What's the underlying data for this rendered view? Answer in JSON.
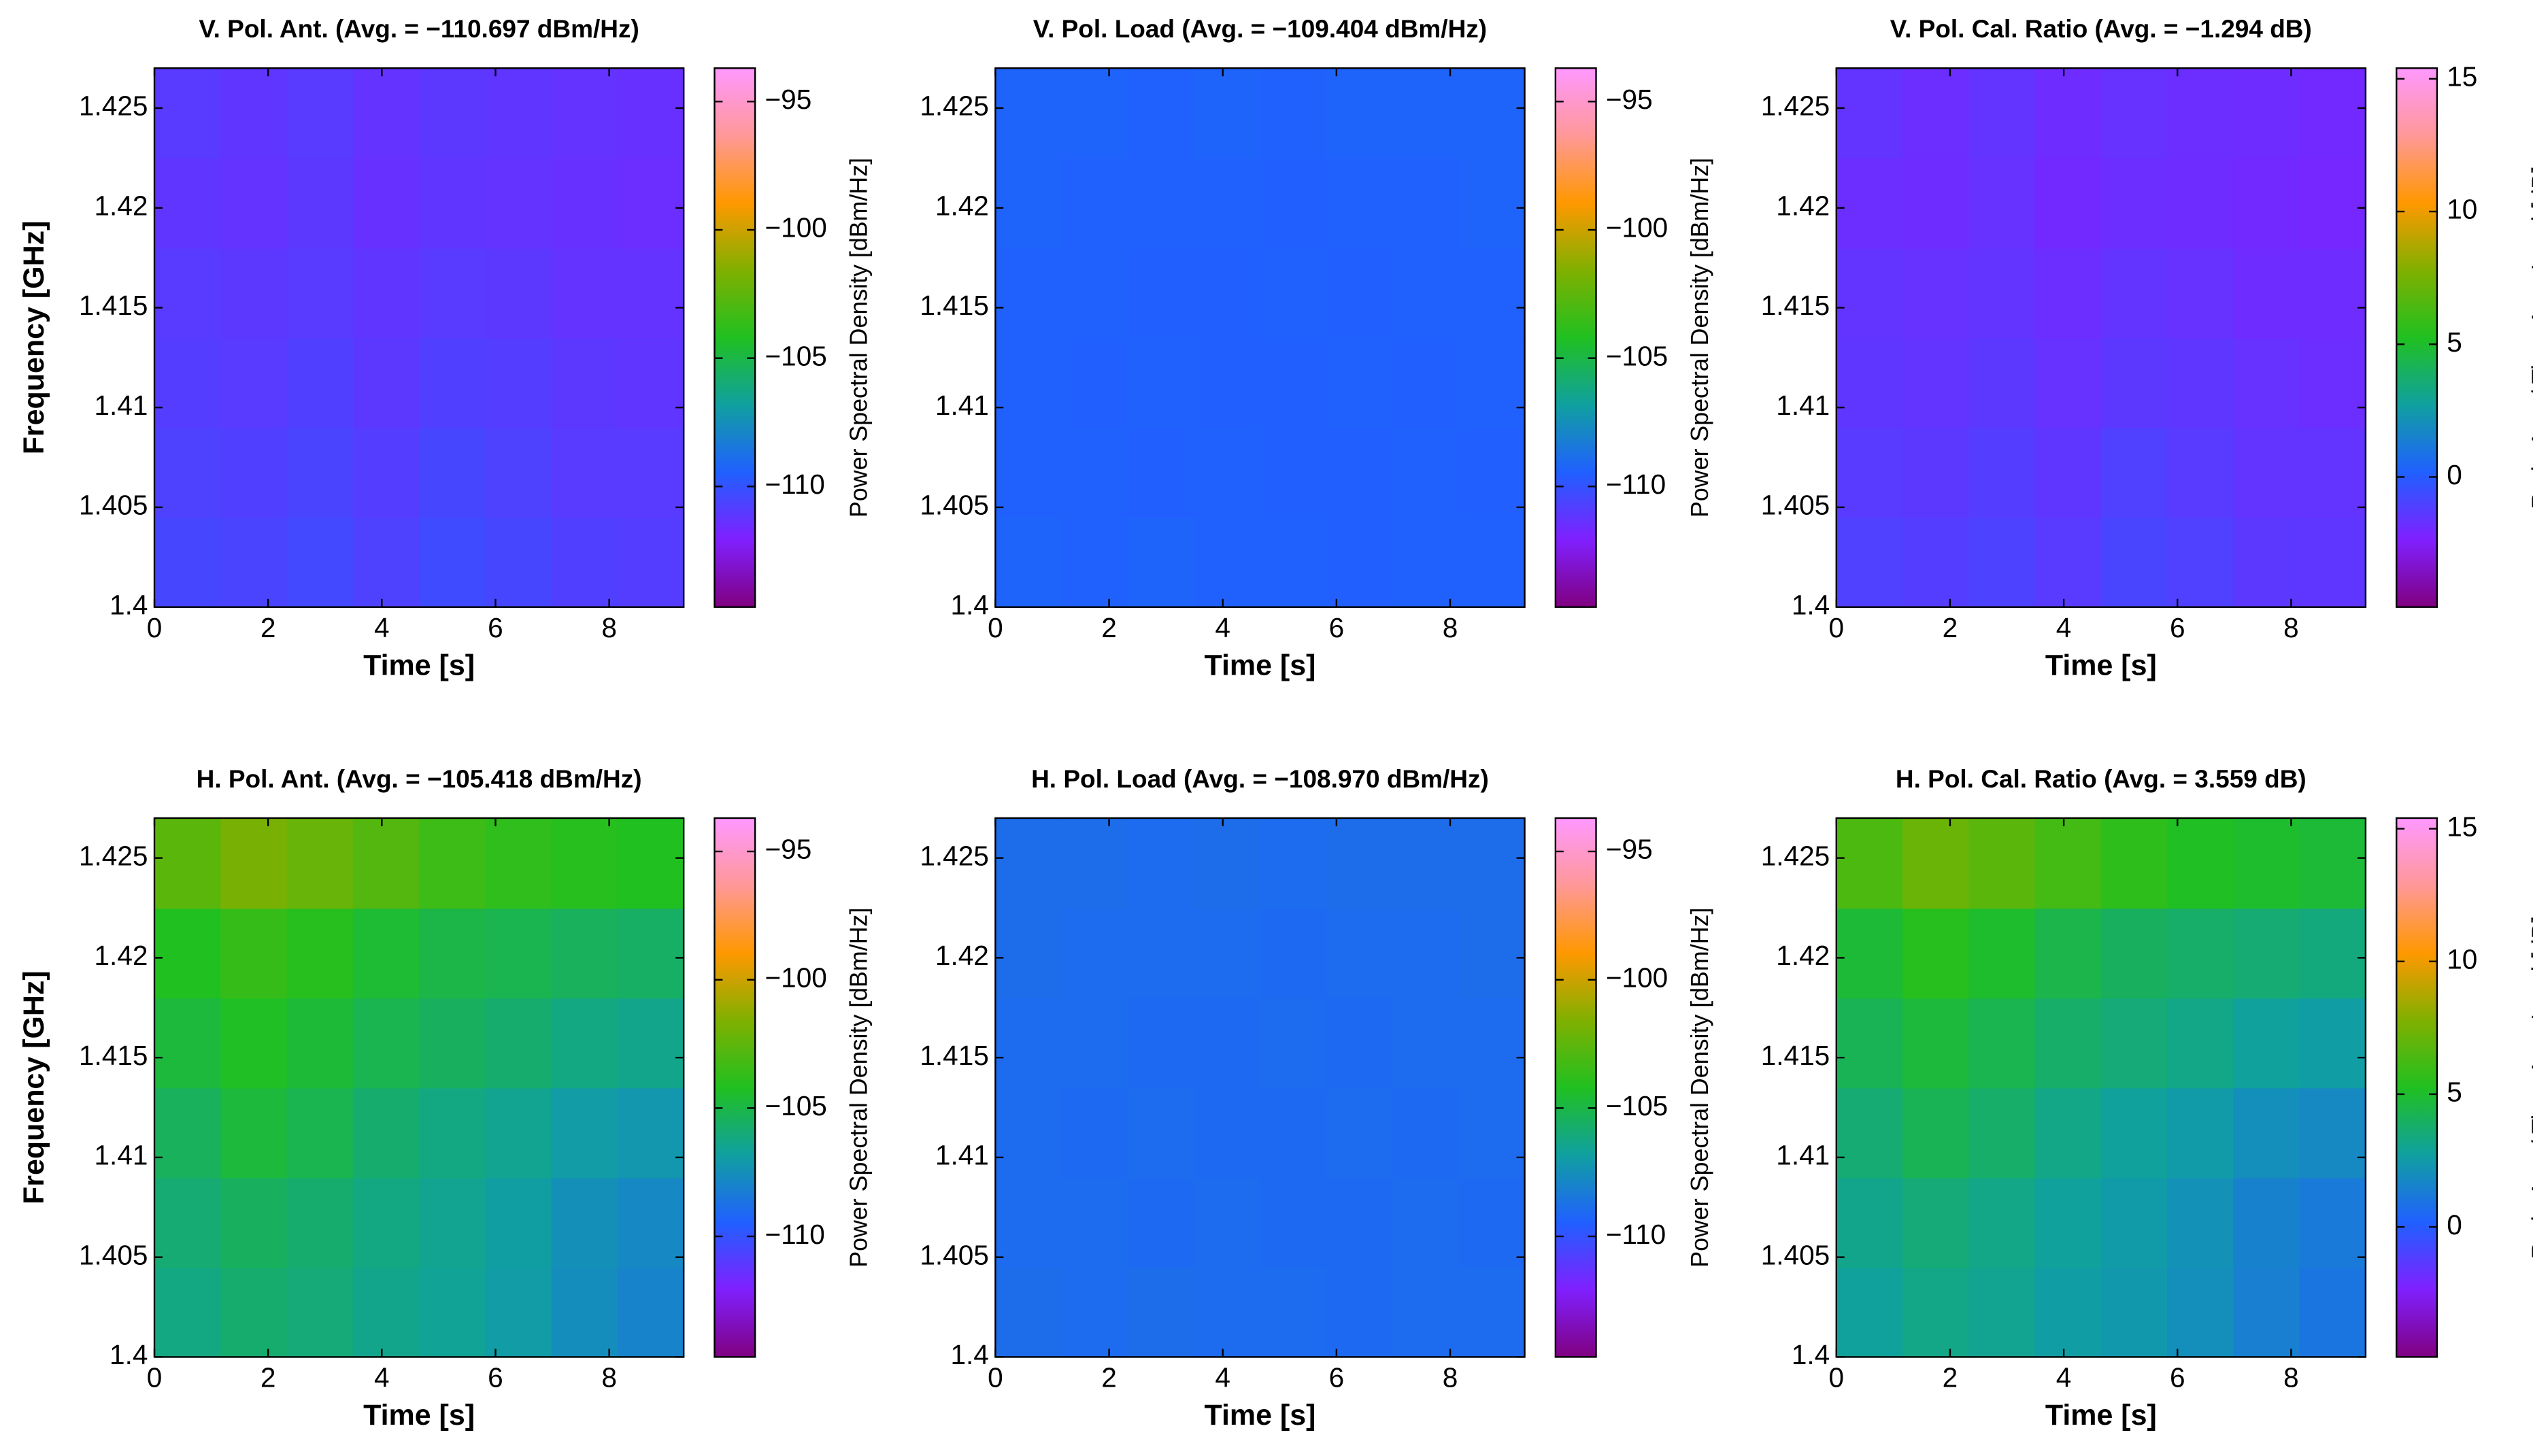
{
  "chart_data": [
    {
      "type": "heatmap",
      "title": "V. Pol. Ant. (Avg. = −110.697 dBm/Hz)",
      "xlabel": "Time [s]",
      "ylabel": "Frequency [GHz]",
      "colorbar_label": "Power Spectral Density [dBm/Hz]",
      "xlim": [
        0,
        9.31
      ],
      "xticks": [
        0,
        2,
        4,
        6,
        8
      ],
      "ylim": [
        1.4,
        1.427
      ],
      "yticks": [
        1.4,
        1.405,
        1.41,
        1.415,
        1.42,
        1.425
      ],
      "clim": [
        -114.7,
        -93.7
      ],
      "cticks": [
        {
          "value": -110,
          "label": "−110"
        },
        {
          "value": -105,
          "label": "−105"
        },
        {
          "value": -100,
          "label": "−100"
        },
        {
          "value": -95,
          "label": "−95"
        }
      ],
      "colormap": [
        "#800080",
        "#8020ff",
        "#2060ff",
        "#10a0a0",
        "#20c020",
        "#80b000",
        "#ff9800",
        "#ff9898",
        "#ff98ff"
      ],
      "z": [
        [
          -110.5,
          -110.6,
          -110.4,
          -110.7,
          -110.3,
          -110.5,
          -110.8,
          -110.9
        ],
        [
          -110.7,
          -110.8,
          -110.6,
          -110.9,
          -110.5,
          -110.7,
          -111.0,
          -111.0
        ],
        [
          -110.9,
          -111.0,
          -110.8,
          -111.1,
          -110.8,
          -110.9,
          -111.1,
          -111.2
        ],
        [
          -111.0,
          -111.1,
          -111.0,
          -111.2,
          -111.0,
          -111.1,
          -111.3,
          -111.3
        ],
        [
          -111.2,
          -111.3,
          -111.1,
          -111.4,
          -111.2,
          -111.3,
          -111.4,
          -111.5
        ],
        [
          -111.0,
          -111.2,
          -111.0,
          -111.3,
          -111.1,
          -111.2,
          -111.3,
          -111.4
        ]
      ]
    },
    {
      "type": "heatmap",
      "title": "V. Pol. Load (Avg. = −109.404 dBm/Hz)",
      "xlabel": "Time [s]",
      "colorbar_label": "Power Spectral Density [dBm/Hz]",
      "xlim": [
        0,
        9.31
      ],
      "xticks": [
        0,
        2,
        4,
        6,
        8
      ],
      "ylim": [
        1.4,
        1.427
      ],
      "yticks": [
        1.4,
        1.405,
        1.41,
        1.415,
        1.42,
        1.425
      ],
      "clim": [
        -114.7,
        -93.7
      ],
      "cticks": [
        {
          "value": -110,
          "label": "−110"
        },
        {
          "value": -105,
          "label": "−105"
        },
        {
          "value": -100,
          "label": "−100"
        },
        {
          "value": -95,
          "label": "−95"
        }
      ],
      "colormap": [
        "#800080",
        "#8020ff",
        "#2060ff",
        "#10a0a0",
        "#20c020",
        "#80b000",
        "#ff9800",
        "#ff9898",
        "#ff98ff"
      ],
      "z": [
        [
          -109.3,
          -109.4,
          -109.3,
          -109.4,
          -109.4,
          -109.5,
          -109.4,
          -109.4
        ],
        [
          -109.4,
          -109.4,
          -109.5,
          -109.4,
          -109.5,
          -109.5,
          -109.4,
          -109.5
        ],
        [
          -109.4,
          -109.5,
          -109.4,
          -109.5,
          -109.5,
          -109.4,
          -109.5,
          -109.4
        ],
        [
          -109.4,
          -109.4,
          -109.5,
          -109.5,
          -109.4,
          -109.5,
          -109.4,
          -109.4
        ],
        [
          -109.3,
          -109.4,
          -109.4,
          -109.4,
          -109.5,
          -109.4,
          -109.4,
          -109.3
        ],
        [
          -109.3,
          -109.3,
          -109.4,
          -109.3,
          -109.4,
          -109.3,
          -109.3,
          -109.3
        ]
      ]
    },
    {
      "type": "heatmap",
      "title": "V. Pol. Cal. Ratio (Avg. = −1.294 dB)",
      "xlabel": "Time [s]",
      "colorbar_label": "Ratio Ant. / Time Avg. Load [dB]",
      "xlim": [
        0,
        9.31
      ],
      "xticks": [
        0,
        2,
        4,
        6,
        8
      ],
      "ylim": [
        1.4,
        1.427
      ],
      "yticks": [
        1.4,
        1.405,
        1.41,
        1.415,
        1.42,
        1.425
      ],
      "clim": [
        -4.9,
        15.4
      ],
      "cticks": [
        0,
        5,
        10,
        15
      ],
      "colormap": [
        "#800080",
        "#8020ff",
        "#2060ff",
        "#10a0a0",
        "#20c020",
        "#80b000",
        "#ff9800",
        "#ff9898",
        "#ff98ff"
      ],
      "z": [
        [
          -1.1,
          -1.2,
          -1.0,
          -1.3,
          -0.9,
          -1.1,
          -1.4,
          -1.5
        ],
        [
          -1.3,
          -1.4,
          -1.2,
          -1.5,
          -1.1,
          -1.3,
          -1.6,
          -1.6
        ],
        [
          -1.5,
          -1.6,
          -1.4,
          -1.7,
          -1.4,
          -1.5,
          -1.7,
          -1.8
        ],
        [
          -1.6,
          -1.7,
          -1.6,
          -1.8,
          -1.6,
          -1.7,
          -1.9,
          -1.9
        ],
        [
          -1.8,
          -1.9,
          -1.7,
          -2.0,
          -1.8,
          -1.9,
          -2.0,
          -2.1
        ],
        [
          -1.6,
          -1.8,
          -1.6,
          -1.9,
          -1.7,
          -1.8,
          -1.9,
          -2.0
        ]
      ]
    },
    {
      "type": "heatmap",
      "title": "H. Pol. Ant. (Avg. = −105.418 dBm/Hz)",
      "xlabel": "Time [s]",
      "ylabel": "Frequency [GHz]",
      "colorbar_label": "Power Spectral Density [dBm/Hz]",
      "xlim": [
        0,
        9.31
      ],
      "xticks": [
        0,
        2,
        4,
        6,
        8
      ],
      "ylim": [
        1.4,
        1.427
      ],
      "yticks": [
        1.4,
        1.405,
        1.41,
        1.415,
        1.42,
        1.425
      ],
      "clim": [
        -114.7,
        -93.7
      ],
      "cticks": [
        {
          "value": -110,
          "label": "−110"
        },
        {
          "value": -105,
          "label": "−105"
        },
        {
          "value": -100,
          "label": "−100"
        },
        {
          "value": -95,
          "label": "−95"
        }
      ],
      "colormap": [
        "#800080",
        "#8020ff",
        "#2060ff",
        "#10a0a0",
        "#20c020",
        "#80b000",
        "#ff9800",
        "#ff9898",
        "#ff98ff"
      ],
      "z": [
        [
          -106.2,
          -105.8,
          -106.0,
          -106.4,
          -106.6,
          -107.0,
          -107.6,
          -108.0
        ],
        [
          -105.9,
          -105.5,
          -105.8,
          -106.2,
          -106.5,
          -106.9,
          -107.5,
          -107.8
        ],
        [
          -105.4,
          -104.8,
          -105.2,
          -105.8,
          -106.2,
          -106.5,
          -107.0,
          -107.2
        ],
        [
          -104.8,
          -104.3,
          -104.7,
          -105.2,
          -105.5,
          -105.8,
          -106.2,
          -106.4
        ],
        [
          -104.2,
          -103.6,
          -104.0,
          -104.6,
          -105.0,
          -105.2,
          -105.4,
          -105.6
        ],
        [
          -102.6,
          -101.8,
          -102.2,
          -102.8,
          -103.4,
          -103.8,
          -104.0,
          -104.2
        ]
      ]
    },
    {
      "type": "heatmap",
      "title": "H. Pol. Load (Avg. = −108.970 dBm/Hz)",
      "xlabel": "Time [s]",
      "colorbar_label": "Power Spectral Density [dBm/Hz]",
      "xlim": [
        0,
        9.31
      ],
      "xticks": [
        0,
        2,
        4,
        6,
        8
      ],
      "ylim": [
        1.4,
        1.427
      ],
      "yticks": [
        1.4,
        1.405,
        1.41,
        1.415,
        1.42,
        1.425
      ],
      "clim": [
        -114.7,
        -93.7
      ],
      "cticks": [
        {
          "value": -110,
          "label": "−110"
        },
        {
          "value": -105,
          "label": "−105"
        },
        {
          "value": -100,
          "label": "−100"
        },
        {
          "value": -95,
          "label": "−95"
        }
      ],
      "colormap": [
        "#800080",
        "#8020ff",
        "#2060ff",
        "#10a0a0",
        "#20c020",
        "#80b000",
        "#ff9800",
        "#ff9898",
        "#ff98ff"
      ],
      "z": [
        [
          -108.9,
          -109.0,
          -108.9,
          -109.0,
          -109.0,
          -109.1,
          -109.0,
          -109.0
        ],
        [
          -109.0,
          -109.0,
          -109.1,
          -109.0,
          -109.1,
          -109.1,
          -109.0,
          -109.1
        ],
        [
          -109.0,
          -109.1,
          -109.0,
          -109.1,
          -109.1,
          -109.0,
          -109.1,
          -109.0
        ],
        [
          -109.0,
          -109.0,
          -109.1,
          -109.1,
          -109.0,
          -109.1,
          -109.0,
          -109.0
        ],
        [
          -108.9,
          -109.0,
          -109.0,
          -109.0,
          -109.1,
          -109.0,
          -109.0,
          -108.9
        ],
        [
          -108.9,
          -108.9,
          -109.0,
          -108.9,
          -109.0,
          -108.9,
          -108.9,
          -108.9
        ]
      ]
    },
    {
      "type": "heatmap",
      "title": "H. Pol. Cal. Ratio (Avg. = 3.559 dB)",
      "xlabel": "Time [s]",
      "colorbar_label": "Ratio Ant. / Time Avg. Load [dB]",
      "xlim": [
        0,
        9.31
      ],
      "xticks": [
        0,
        2,
        4,
        6,
        8
      ],
      "ylim": [
        1.4,
        1.427
      ],
      "yticks": [
        1.4,
        1.405,
        1.41,
        1.415,
        1.42,
        1.425
      ],
      "clim": [
        -4.9,
        15.4
      ],
      "cticks": [
        0,
        5,
        10,
        15
      ],
      "colormap": [
        "#800080",
        "#8020ff",
        "#2060ff",
        "#10a0a0",
        "#20c020",
        "#80b000",
        "#ff9800",
        "#ff9898",
        "#ff98ff"
      ],
      "z": [
        [
          2.8,
          3.2,
          3.0,
          2.6,
          2.4,
          2.0,
          1.4,
          1.0
        ],
        [
          3.1,
          3.5,
          3.2,
          2.8,
          2.5,
          2.1,
          1.5,
          1.2
        ],
        [
          3.6,
          4.2,
          3.8,
          3.2,
          2.8,
          2.5,
          2.0,
          1.8
        ],
        [
          4.2,
          4.7,
          4.3,
          3.8,
          3.5,
          3.2,
          2.8,
          2.6
        ],
        [
          4.8,
          5.4,
          5.0,
          4.4,
          4.0,
          3.8,
          3.6,
          3.4
        ],
        [
          6.4,
          7.2,
          6.8,
          6.2,
          5.6,
          5.2,
          5.0,
          4.8
        ]
      ]
    }
  ]
}
